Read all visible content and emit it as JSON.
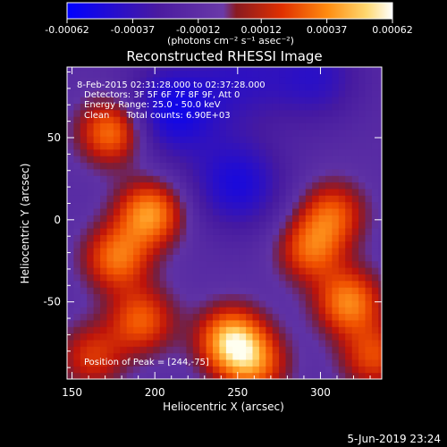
{
  "colorbar": {
    "tick_labels": [
      "-0.00062",
      "-0.00037",
      "-0.00012",
      "0.00012",
      "0.00037",
      "0.00062"
    ],
    "tick_values": [
      -0.00062,
      -0.00037,
      -0.00012,
      0.00012,
      0.00037,
      0.00062
    ],
    "range": [
      -0.00062,
      0.00062
    ],
    "units_label": "(photons cm⁻² s⁻¹ asec⁻²)"
  },
  "chart_data": {
    "type": "heatmap",
    "title": "Reconstructed RHESSI Image",
    "xlabel": "Heliocentric X (arcsec)",
    "ylabel": "Heliocentric Y (arcsec)",
    "xlim": [
      147,
      337
    ],
    "ylim": [
      -97,
      93
    ],
    "xticks": [
      150,
      200,
      250,
      300
    ],
    "yticks": [
      50,
      0,
      -50
    ],
    "annotations": [
      "8-Feb-2015 02:31:28.000 to 02:37:28.000",
      "Detectors: 3F 5F 6F 7F 8F 9F, Att 0",
      "Energy Range: 25.0 - 50.0 keV",
      "Clean      Total counts: 6.90E+03"
    ],
    "peak_label": "Position of Peak = [244,-75]",
    "peak": [
      244,
      -75
    ],
    "sources": [
      {
        "x": 244,
        "y": -75,
        "value": 0.00062
      },
      {
        "x": 195,
        "y": 2,
        "value": 0.00055
      },
      {
        "x": 172,
        "y": 52,
        "value": 0.0005
      },
      {
        "x": 175,
        "y": -25,
        "value": 0.00045
      },
      {
        "x": 190,
        "y": -63,
        "value": 0.0004
      },
      {
        "x": 258,
        "y": -90,
        "value": 0.0004
      },
      {
        "x": 315,
        "y": -52,
        "value": 0.0005
      },
      {
        "x": 292,
        "y": -20,
        "value": 0.0004
      },
      {
        "x": 305,
        "y": 2,
        "value": 0.00038
      },
      {
        "x": 330,
        "y": -85,
        "value": 0.00035
      },
      {
        "x": 160,
        "y": -85,
        "value": 0.0003
      },
      {
        "x": 208,
        "y": 65,
        "value": -0.00045
      },
      {
        "x": 248,
        "y": 20,
        "value": -0.0004
      },
      {
        "x": 295,
        "y": 85,
        "value": -0.0003
      },
      {
        "x": 250,
        "y": 85,
        "value": -0.00025
      }
    ]
  },
  "timestamp": "5-Jun-2019 23:24"
}
